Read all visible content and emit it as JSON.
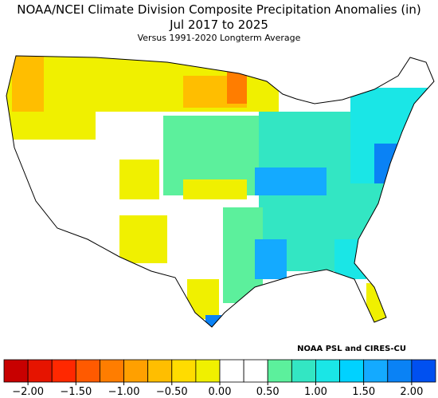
{
  "header": {
    "title": "NOAA/NCEI Climate Division Composite Precipitation Anomalies (in)",
    "period": "Jul 2017 to 2025",
    "subtitle": "Versus 1991-2020 Longterm Average"
  },
  "credit": "NOAA PSL and CIRES-CU",
  "colorbar": {
    "limits": [
      -2.25,
      2.25
    ],
    "colors": [
      "#c80000",
      "#e61400",
      "#ff2800",
      "#ff5a00",
      "#ff7d00",
      "#ffa000",
      "#ffbe00",
      "#ffdc00",
      "#f0f000",
      "#ffffff",
      "#ffffff",
      "#5cf09c",
      "#33e6c3",
      "#1ae6e6",
      "#00d2ff",
      "#14aaff",
      "#0a82f5",
      "#0050f0"
    ],
    "ticks": [
      {
        "value": -2,
        "label": "−2.00"
      },
      {
        "value": -1.5,
        "label": "−1.50"
      },
      {
        "value": -1,
        "label": "−1.00"
      },
      {
        "value": -0.5,
        "label": "−0.50"
      },
      {
        "value": 0,
        "label": "0.00"
      },
      {
        "value": 0.5,
        "label": "0.50"
      },
      {
        "value": 1,
        "label": "1.00"
      },
      {
        "value": 1.5,
        "label": "1.50"
      },
      {
        "value": 2,
        "label": "2.00"
      }
    ]
  }
}
